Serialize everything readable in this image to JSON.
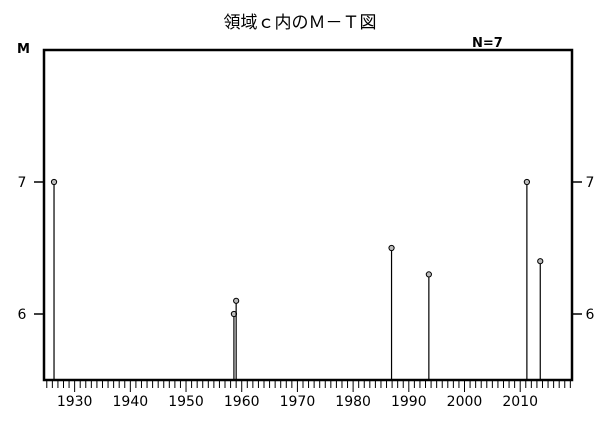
{
  "chart_data": {
    "type": "stem",
    "title": "領域ｃ内のＭ－Ｔ図",
    "count_label": "N=7",
    "ylabel": "M",
    "xlabel": "",
    "xlim": [
      1924.5,
      2019.3
    ],
    "ylim": [
      5.5,
      8.0
    ],
    "x_ticks": [
      1930,
      1940,
      1950,
      1960,
      1970,
      1980,
      1990,
      2000,
      2010
    ],
    "y_ticks": [
      6,
      7
    ],
    "grid": false,
    "points": [
      {
        "x": 1926.3,
        "y": 7.0
      },
      {
        "x": 1958.6,
        "y": 6.0
      },
      {
        "x": 1959.0,
        "y": 6.1
      },
      {
        "x": 1986.9,
        "y": 6.5
      },
      {
        "x": 1993.6,
        "y": 6.3
      },
      {
        "x": 2011.2,
        "y": 7.0
      },
      {
        "x": 2013.6,
        "y": 6.4
      }
    ]
  }
}
